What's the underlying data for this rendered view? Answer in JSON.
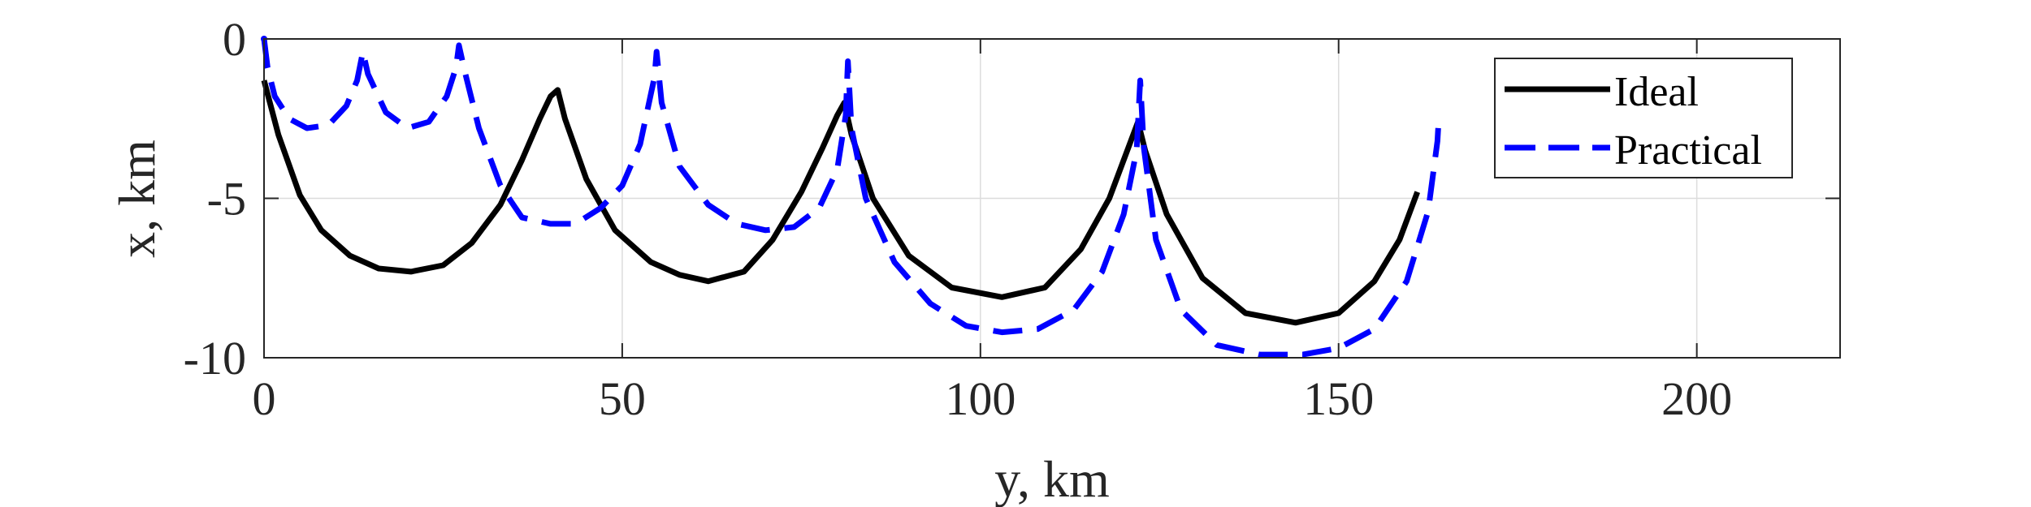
{
  "chart_data": {
    "type": "line",
    "xlabel": "y, km",
    "ylabel": "x, km",
    "xlim": [
      0,
      220
    ],
    "ylim": [
      -10,
      0
    ],
    "xticks": [
      0,
      50,
      100,
      150,
      200
    ],
    "yticks": [
      0,
      -5,
      -10
    ],
    "xtick_labels": [
      "0",
      "50",
      "100",
      "150",
      "200"
    ],
    "ytick_labels": [
      "0",
      "-5",
      "-10"
    ],
    "grid": true,
    "legend_position": "top-right",
    "series": [
      {
        "name": "Ideal",
        "color": "#000000",
        "style": "solid",
        "x": [
          0,
          2,
          5,
          8,
          12,
          16,
          20.5,
          25,
          29,
          33,
          36,
          38.5,
          40,
          41,
          41,
          42,
          45,
          49,
          54,
          58,
          62,
          67,
          71,
          75,
          78,
          80,
          81,
          81,
          82,
          85,
          90,
          96,
          103,
          109,
          114,
          118,
          120.5,
          122,
          122,
          123,
          126,
          131,
          137,
          144,
          150,
          155,
          158.5,
          161
        ],
        "y": [
          -1.3,
          -3.0,
          -4.9,
          -6.0,
          -6.8,
          -7.2,
          -7.3,
          -7.1,
          -6.4,
          -5.2,
          -3.8,
          -2.5,
          -1.8,
          -1.6,
          -1.6,
          -2.5,
          -4.4,
          -6.0,
          -7.0,
          -7.4,
          -7.6,
          -7.3,
          -6.3,
          -4.8,
          -3.4,
          -2.4,
          -2.0,
          -2.0,
          -3.0,
          -5.0,
          -6.8,
          -7.8,
          -8.1,
          -7.8,
          -6.6,
          -5.0,
          -3.5,
          -2.6,
          -2.6,
          -3.5,
          -5.5,
          -7.5,
          -8.6,
          -8.9,
          -8.6,
          -7.6,
          -6.3,
          -4.8
        ]
      },
      {
        "name": "Practical",
        "color": "#0000ff",
        "style": "dashed",
        "x": [
          0,
          0.5,
          1.5,
          3.5,
          6,
          9,
          11.5,
          13,
          13.8,
          13.8,
          14.5,
          17,
          20,
          23,
          25.5,
          26.8,
          27.2,
          27.2,
          28,
          30,
          33,
          36,
          40,
          43.5,
          47,
          50,
          52.5,
          54.5,
          54.8,
          54.8,
          55.5,
          58,
          62,
          66,
          70,
          74,
          77.5,
          80,
          81.2,
          81.5,
          81.5,
          82,
          84,
          88,
          93,
          98,
          103,
          108,
          113,
          117,
          120,
          121.8,
          122.3,
          122.8,
          124.5,
          128,
          133,
          139,
          145,
          150,
          155,
          159.5,
          162.5,
          163.8,
          164
        ],
        "y": [
          0,
          -0.9,
          -1.8,
          -2.5,
          -2.8,
          -2.7,
          -2.1,
          -1.3,
          -0.4,
          -0.4,
          -1.1,
          -2.3,
          -2.8,
          -2.6,
          -1.8,
          -0.9,
          -0.2,
          -0.2,
          -1.0,
          -2.8,
          -4.6,
          -5.6,
          -5.8,
          -5.8,
          -5.3,
          -4.6,
          -3.3,
          -1.2,
          -0.4,
          -0.4,
          -2.0,
          -4.0,
          -5.2,
          -5.8,
          -6.0,
          -5.9,
          -5.3,
          -4.1,
          -2.4,
          -0.7,
          -0.7,
          -2.8,
          -5.0,
          -7.0,
          -8.3,
          -9.0,
          -9.2,
          -9.1,
          -8.5,
          -7.3,
          -5.5,
          -3.5,
          -1.3,
          -3.4,
          -6.3,
          -8.5,
          -9.6,
          -9.9,
          -9.9,
          -9.7,
          -9.1,
          -7.6,
          -5.4,
          -3.2,
          -2.4
        ]
      }
    ]
  }
}
